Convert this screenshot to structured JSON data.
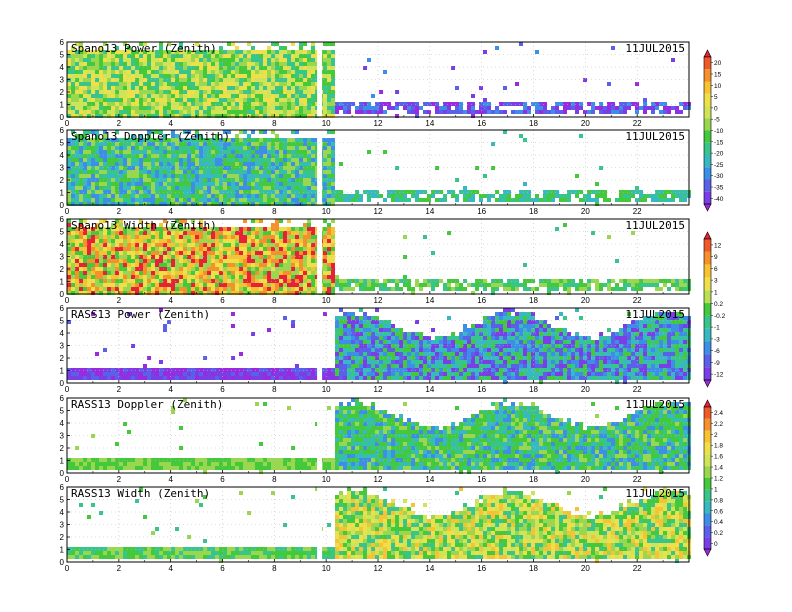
{
  "figure": {
    "date_label": "11JUL2015"
  },
  "colorbars": [
    {
      "name": "colorbar-dbz",
      "labels": [
        "20",
        "15",
        "10",
        "5",
        "0",
        "-5",
        "-10",
        "-15",
        "-20",
        "-25",
        "-30",
        "-35",
        "-40"
      ],
      "colors": [
        "#e8203a",
        "#f05a2a",
        "#f6902a",
        "#f7c332",
        "#eee04a",
        "#cfe457",
        "#99d84e",
        "#44c83c",
        "#38c58c",
        "#38b8c2",
        "#3c8ee6",
        "#5a60e8",
        "#7a3ee6",
        "#9a2ae0"
      ]
    },
    {
      "name": "colorbar-doppler",
      "labels": [
        "12",
        "9",
        "6",
        "3",
        "1",
        "0.2",
        "-0.2",
        "-1",
        "-3",
        "-6",
        "-9",
        "-12"
      ],
      "colors": [
        "#e8203a",
        "#f05a2a",
        "#f6902a",
        "#f7c332",
        "#eee04a",
        "#b9e052",
        "#44c83c",
        "#38c58c",
        "#38b8c2",
        "#3c8ee6",
        "#5a60e8",
        "#7a3ee6",
        "#9a2ae0"
      ]
    },
    {
      "name": "colorbar-width",
      "labels": [
        "2.4",
        "2.2",
        "2",
        "1.8",
        "1.6",
        "1.4",
        "1.2",
        "1",
        "0.8",
        "0.6",
        "0.4",
        "0.2",
        "0"
      ],
      "colors": [
        "#e8203a",
        "#f05a2a",
        "#f6902a",
        "#f7c332",
        "#eee04a",
        "#cfe457",
        "#99d84e",
        "#44c83c",
        "#38c58c",
        "#38b8c2",
        "#3c8ee6",
        "#5a60e8",
        "#7a3ee6",
        "#9a2ae0"
      ]
    }
  ],
  "chart_data": [
    {
      "type": "heatmap",
      "title": "Spano13 Power (Zenith)",
      "date": "11JUL2015",
      "xlim": [
        0,
        24
      ],
      "ylim": [
        0,
        6
      ],
      "x_ticks": [
        0,
        2,
        4,
        6,
        8,
        10,
        12,
        14,
        16,
        18,
        20,
        22
      ],
      "y_ticks": [
        0,
        1,
        2,
        3,
        4,
        5,
        6
      ],
      "grid": true,
      "colorbar": "colorbar-dbz",
      "dominant_color_left": "green/yellow",
      "dominant_color_right": "purple low layer"
    },
    {
      "type": "heatmap",
      "title": "Spano13 Doppler (Zenith)",
      "date": "11JUL2015",
      "xlim": [
        0,
        24
      ],
      "ylim": [
        0,
        6
      ],
      "x_ticks": [
        0,
        2,
        4,
        6,
        8,
        10,
        12,
        14,
        16,
        18,
        20,
        22
      ],
      "y_ticks": [
        0,
        1,
        2,
        3,
        4,
        5,
        6
      ],
      "grid": true,
      "colorbar": "colorbar-dbz",
      "dominant_color_left": "green",
      "dominant_color_right": "cyan low layer"
    },
    {
      "type": "heatmap",
      "title": "Spano13 Width (Zenith)",
      "date": "11JUL2015",
      "xlim": [
        0,
        24
      ],
      "ylim": [
        0,
        6
      ],
      "x_ticks": [
        0,
        2,
        4,
        6,
        8,
        10,
        12,
        14,
        16,
        18,
        20,
        22
      ],
      "y_ticks": [
        0,
        1,
        2,
        3,
        4,
        5,
        6
      ],
      "grid": true,
      "colorbar": "colorbar-doppler",
      "dominant_color_left": "orange/yellow/red",
      "dominant_color_right": "green low layer"
    },
    {
      "type": "heatmap",
      "title": "RASS13 Power (Zenith)",
      "date": "11JUL2015",
      "xlim": [
        0,
        24
      ],
      "ylim": [
        0,
        6
      ],
      "x_ticks": [
        0,
        2,
        4,
        6,
        8,
        10,
        12,
        14,
        16,
        18,
        20,
        22
      ],
      "y_ticks": [
        0,
        1,
        2,
        3,
        4,
        5,
        6
      ],
      "grid": true,
      "colorbar": "colorbar-doppler",
      "dominant_color_left": "purple low layer",
      "dominant_color_right": "cyan/blue"
    },
    {
      "type": "heatmap",
      "title": "RASS13 Doppler (Zenith)",
      "date": "11JUL2015",
      "xlim": [
        0,
        24
      ],
      "ylim": [
        0,
        6
      ],
      "x_ticks": [
        0,
        2,
        4,
        6,
        8,
        10,
        12,
        14,
        16,
        18,
        20,
        22
      ],
      "y_ticks": [
        0,
        1,
        2,
        3,
        4,
        5,
        6
      ],
      "grid": true,
      "colorbar": "colorbar-width",
      "dominant_color_left": "green low layer",
      "dominant_color_right": "green"
    },
    {
      "type": "heatmap",
      "title": "RASS13 Width (Zenith)",
      "date": "11JUL2015",
      "xlim": [
        0,
        24
      ],
      "ylim": [
        0,
        6
      ],
      "x_ticks": [
        0,
        2,
        4,
        6,
        8,
        10,
        12,
        14,
        16,
        18,
        20,
        22
      ],
      "y_ticks": [
        0,
        1,
        2,
        3,
        4,
        5,
        6
      ],
      "grid": true,
      "colorbar": "colorbar-width",
      "dominant_color_left": "green low layer",
      "dominant_color_right": "green/yellow"
    }
  ]
}
